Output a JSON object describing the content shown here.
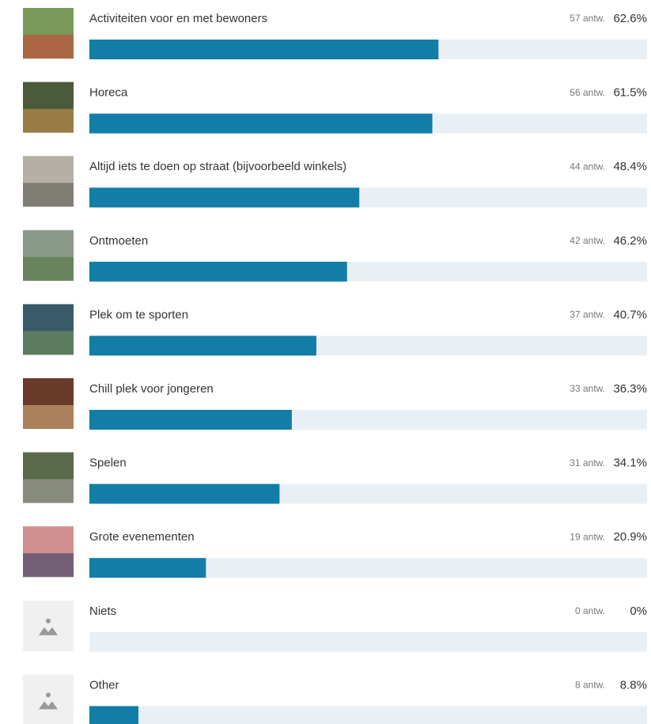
{
  "chart_data": {
    "type": "bar",
    "orientation": "horizontal",
    "categories": [
      "Activiteiten voor en met bewoners",
      "Horeca",
      "Altijd iets te doen op straat (bijvoorbeeld winkels)",
      "Ontmoeten",
      "Plek om te sporten",
      "Chill plek voor jongeren",
      "Spelen",
      "Grote evenementen",
      "Niets",
      "Other"
    ],
    "values": [
      62.6,
      61.5,
      48.4,
      46.2,
      40.7,
      36.3,
      34.1,
      20.9,
      0,
      8.8
    ],
    "value_labels": [
      "62.6%",
      "61.5%",
      "48.4%",
      "46.2%",
      "40.7%",
      "36.3%",
      "34.1%",
      "20.9%",
      "0%",
      "8.8%"
    ],
    "count_labels": [
      "57 antw.",
      "56 antw.",
      "44 antw.",
      "42 antw.",
      "37 antw.",
      "33 antw.",
      "31 antw.",
      "19 antw.",
      "0 antw.",
      "8 antw."
    ],
    "color": "#127ea7",
    "track_color": "#e9f0f5",
    "xlim": [
      0,
      100
    ]
  }
}
